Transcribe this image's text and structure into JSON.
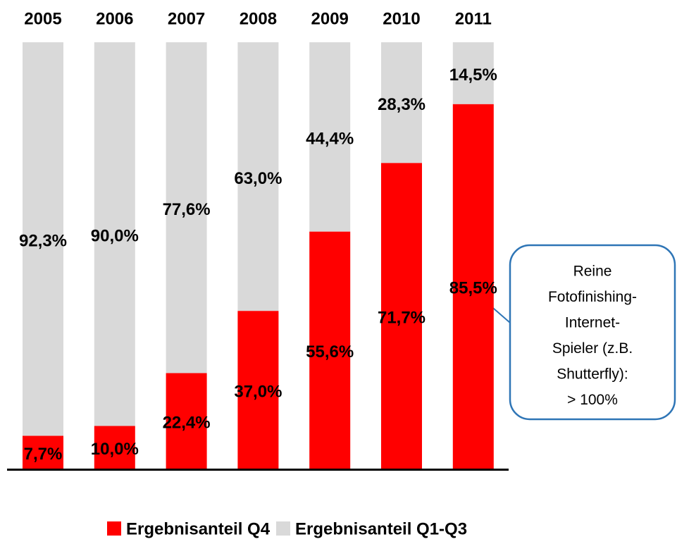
{
  "chart_data": {
    "type": "stacked_bar",
    "categories": [
      "2005",
      "2006",
      "2007",
      "2008",
      "2009",
      "2010",
      "2011"
    ],
    "series": [
      {
        "name": "Ergebnisanteil Q4",
        "color": "#ff0000",
        "values": [
          7.7,
          10.0,
          22.4,
          37.0,
          55.6,
          71.7,
          85.5
        ],
        "value_labels": [
          "7,7%",
          "10,0%",
          "22,4%",
          "37,0%",
          "55,6%",
          "71,7%",
          "85,5%"
        ]
      },
      {
        "name": "Ergebnisanteil Q1-Q3",
        "color": "#d9d9d9",
        "values": [
          92.3,
          90.0,
          77.6,
          63.0,
          44.4,
          28.3,
          14.5
        ],
        "value_labels": [
          "92,3%",
          "90,0%",
          "77,6%",
          "63,0%",
          "44,4%",
          "28,3%",
          "14,5%"
        ]
      }
    ],
    "ylim": [
      0,
      100
    ],
    "annotation": [
      "Reine",
      "Fotofinishing-",
      "Internet-",
      "Spieler (z.B.",
      "Shutterfly):",
      "> 100%"
    ]
  }
}
